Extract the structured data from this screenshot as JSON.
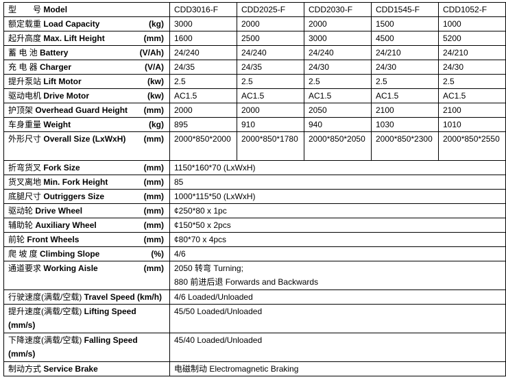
{
  "header": {
    "cn": "型　　号",
    "en": "Model",
    "models": [
      "CDD3016-F",
      "CDD2025-F",
      "CDD2030-F",
      "CDD1545-F",
      "CDD1052-F"
    ]
  },
  "rows": [
    {
      "cn": "额定载重",
      "en": "Load Capacity",
      "unit": "(kg)",
      "values": [
        "3000",
        "2000",
        "2000",
        "1500",
        "1000"
      ]
    },
    {
      "cn": "起升高度",
      "en": "Max. Lift Height",
      "unit": "(mm)",
      "values": [
        "1600",
        "2500",
        "3000",
        "4500",
        "5200"
      ]
    },
    {
      "cn": "蓄 电 池",
      "en": "Battery",
      "unit": "(V/Ah)",
      "values": [
        "24/240",
        "24/240",
        "24/240",
        "24/210",
        "24/210"
      ]
    },
    {
      "cn": "充 电 器",
      "en": "Charger",
      "unit": "(V/A)",
      "values": [
        "24/35",
        "24/35",
        "24/30",
        "24/30",
        "24/30"
      ]
    },
    {
      "cn": "提升泵站",
      "en": "Lift Motor",
      "unit": "(kw)",
      "values": [
        "2.5",
        "2.5",
        "2.5",
        "2.5",
        "2.5"
      ]
    },
    {
      "cn": "驱动电机",
      "en": "Drive Motor",
      "unit": "(kw)",
      "values": [
        "AC1.5",
        "AC1.5",
        "AC1.5",
        "AC1.5",
        "AC1.5"
      ]
    },
    {
      "cn": "护顶架",
      "en": "Overhead Guard Height",
      "unit": "(mm)",
      "values": [
        "2000",
        "2000",
        "2050",
        "2100",
        "2100"
      ]
    },
    {
      "cn": "车身重量",
      "en": "Weight",
      "unit": "(kg)",
      "values": [
        "895",
        "910",
        "940",
        "1030",
        "1010"
      ]
    },
    {
      "cn": "外形尺寸",
      "en": "Overall Size (LxWxH)",
      "unit": "(mm)",
      "values": [
        "2000*850*2000",
        "2000*850*1780",
        "2000*850*2050",
        "2000*850*2300",
        "2000*850*2550"
      ]
    }
  ],
  "spec_rows": [
    {
      "cn": "折弯货叉",
      "en": "Fork Size",
      "unit": "(mm)",
      "value": "1150*160*70 (LxWxH)"
    },
    {
      "cn": "货叉离地",
      "en": "Min. Fork Height",
      "unit": "(mm)",
      "value": "85"
    },
    {
      "cn": "底腿尺寸",
      "en": " Outriggers Size",
      "unit": "(mm)",
      "value": "1000*115*50 (LxWxH)"
    },
    {
      "cn": "驱动轮",
      "en": " Drive Wheel",
      "unit": "(mm)",
      "value": "¢250*80 x 1pc"
    },
    {
      "cn": "辅助轮",
      "en": " Auxiliary Wheel",
      "unit": "(mm)",
      "value": "¢150*50 x 2pcs"
    },
    {
      "cn": "前轮",
      "en": "Front Wheels",
      "unit": "(mm)",
      "value": "¢80*70 x 4pcs"
    },
    {
      "cn": "爬 坡 度",
      "en": " Climbing Slope",
      "unit": "(%)",
      "value": "4/6"
    },
    {
      "cn": "通道要求",
      "en": " Working Aisle",
      "unit": "(mm)",
      "value": "2050 转弯 Turning;",
      "value2": "880 前进后退 Forwards and Backwards"
    },
    {
      "cn": "行驶速度(满载/空载)",
      "en": "Travel Speed (km/h)",
      "unit": "",
      "value": "4/6 Loaded/Unloaded"
    },
    {
      "cn": "提升速度(满载/空载)",
      "en": "  Lifting Speed (mm/s)",
      "unit": "",
      "value": "45/50 Loaded/Unloaded",
      "tall": true
    },
    {
      "cn": "下降速度(满载/空载)",
      "en": "Falling Speed (mm/s)",
      "unit": "",
      "value": "45/40 Loaded/Unloaded",
      "tall": true
    },
    {
      "cn": "制动方式",
      "en": "Service Brake",
      "unit": "",
      "value": "电磁制动 Electromagnetic Braking"
    }
  ]
}
